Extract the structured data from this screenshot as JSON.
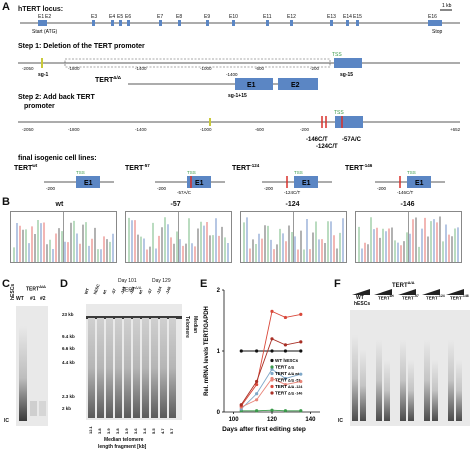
{
  "panel_letters": {
    "a": "A",
    "b": "B",
    "c": "C",
    "d": "D",
    "e": "E",
    "f": "F"
  },
  "panel_a": {
    "locus_title": "hTERT locus:",
    "scale_bar": "1 kb",
    "exon_labels": [
      "E1",
      "E2",
      "E3",
      "E4",
      "E5",
      "E6",
      "E7",
      "E8",
      "E9",
      "E10",
      "E11",
      "E12",
      "E13",
      "E14",
      "E15",
      "E16"
    ],
    "start_label": "Start (ATG)",
    "stop_label": "Stop",
    "step1_title": "Step 1: Deletion of the TERT promoter",
    "step1_guide": "sg-1",
    "step1_guide2": "sg-15",
    "tss": "TSS",
    "step1_ticks": [
      "-2050",
      "-1800",
      "-1400",
      "-1000",
      "-600",
      "-200"
    ],
    "tert_dd": "TERT",
    "tert_dd_sup": "Δ/Δ",
    "step1_1400": "-1400",
    "step1_guide3": "sg-1+15",
    "step2_title": "Step 2: Add back TERT",
    "step2_title_2": "promoter",
    "e1": "E1",
    "e2": "E2",
    "step2_ticks": [
      "-2050",
      "-1800",
      "-1400",
      "-1000",
      "-600",
      "-200",
      "+652"
    ],
    "mut_146": "-146C/T",
    "mut_124": "-124C/T",
    "mut_57": "-57A/C",
    "final_title": "final isogenic cell lines:",
    "lines": [
      {
        "name": "TERT",
        "sup": "wt",
        "tick": "-200",
        "mut": ""
      },
      {
        "name": "TERT",
        "sup": "-57",
        "tick": "-200",
        "mut": "-57A/C"
      },
      {
        "name": "TERT",
        "sup": "-124",
        "tick": "-200",
        "mut": "-124C/T"
      },
      {
        "name": "TERT",
        "sup": "-146",
        "tick": "-200",
        "mut": "-146C/T"
      }
    ]
  },
  "panel_b": {
    "titles": [
      "wt",
      "-57",
      "-124",
      "-146"
    ]
  },
  "panel_c": {
    "ylabel": "hESCs",
    "lanes": [
      "WT",
      "TERT",
      "#1",
      "#2"
    ],
    "tert_sup": "Δ/Δ",
    "ic": "IC"
  },
  "panel_d": {
    "day101": "Day 101",
    "day129": "Day 129",
    "tert_header": "TERT",
    "tert_header_sup": "Δ/Δ",
    "lanes": [
      "WT",
      "hESC",
      "wt",
      "-57",
      "-124",
      "-146",
      "wt",
      "-57",
      "-124",
      "-146"
    ],
    "size_markers": [
      "23 kb",
      "9.4 kb",
      "6.6 kb",
      "4.4 kb",
      "2.3 kb",
      "2 kb"
    ],
    "median_values": [
      "12.1",
      "3.8",
      "3.9",
      "3.8",
      "3.9",
      "3.6",
      "3.4",
      "5.5",
      "4.7",
      "5.7"
    ],
    "median_label": "Median telomere",
    "length_label": "length fragment [kb]",
    "right_label": "Telomere",
    "right_label2": "Median"
  },
  "panel_f": {
    "wt": "WT",
    "hescs": "hESCs",
    "tert": "TERT",
    "tert_sup": "Δ/Δ",
    "groups": [
      {
        "name": "TERT",
        "sup": "wt"
      },
      {
        "name": "TERT",
        "sup": "-57"
      },
      {
        "name": "TERT",
        "sup": "-124"
      },
      {
        "name": "TERT",
        "sup": "-146"
      }
    ],
    "ic": "IC"
  },
  "chart_data": {
    "type": "line",
    "title": "",
    "xlabel": "Days after first editing step",
    "ylabel": "Rel. mRNA levels TERT/GAPDH",
    "xlim": [
      95,
      145
    ],
    "ylim": [
      0,
      2
    ],
    "xticks": [
      100,
      120,
      140
    ],
    "yticks": [
      0,
      1,
      2
    ],
    "legend_position": "lower-right",
    "series": [
      {
        "name": "WT hESCs",
        "sup": "",
        "color": "#111111",
        "x": [
          104,
          112,
          120,
          127,
          135
        ],
        "y": [
          1.0,
          1.0,
          1.0,
          1.0,
          1.0
        ]
      },
      {
        "name": "TERT",
        "sup": "Δ/Δ",
        "color": "#3a9a4a",
        "x": [
          104,
          112,
          120,
          127,
          135
        ],
        "y": [
          0.02,
          0.02,
          0.03,
          0.02,
          0.02
        ]
      },
      {
        "name": "TERT",
        "sup": "Δ/Δ wt",
        "color": "#7fa8c9",
        "x": [
          104,
          112,
          120,
          127,
          135
        ],
        "y": [
          0.05,
          0.3,
          0.7,
          0.55,
          0.62
        ]
      },
      {
        "name": "TERT",
        "sup": "Δ/Δ -57",
        "color": "#e8867a",
        "x": [
          104,
          112,
          120,
          127,
          135
        ],
        "y": [
          0.08,
          0.2,
          0.55,
          0.45,
          0.5
        ]
      },
      {
        "name": "TERT",
        "sup": "Δ/Δ -124",
        "color": "#d9483a",
        "x": [
          104,
          112,
          120,
          127,
          135
        ],
        "y": [
          0.1,
          0.45,
          1.65,
          1.55,
          1.6
        ]
      },
      {
        "name": "TERT",
        "sup": "Δ/Δ -146",
        "color": "#a82f25",
        "x": [
          104,
          112,
          120,
          127,
          135
        ],
        "y": [
          0.12,
          0.5,
          1.2,
          1.1,
          1.15
        ]
      }
    ]
  }
}
